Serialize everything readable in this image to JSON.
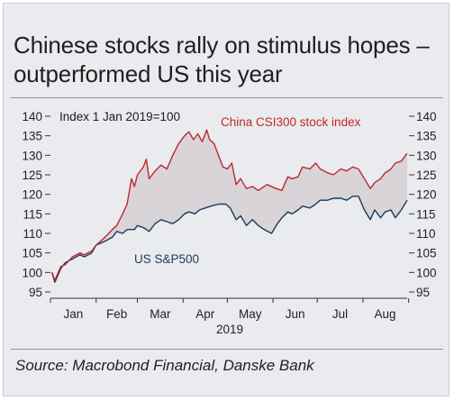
{
  "title": "Chinese stocks rally on stimulus hopes – outperformed US this year",
  "source": "Source: Macrobond Financial, Danske Bank",
  "colors": {
    "china": "#c0272d",
    "us": "#1c3a5e",
    "fill": "#d8d4d7",
    "background": "#e9ebee"
  },
  "chart_data": {
    "type": "line",
    "title": "",
    "subtitle": "Index 1 Jan 2019=100",
    "xlabel": "2019",
    "ylabel": "",
    "ylim": [
      95,
      140
    ],
    "yticks": [
      95,
      100,
      105,
      110,
      115,
      120,
      125,
      130,
      135,
      140
    ],
    "ytick_labels": [
      "95",
      "100",
      "105",
      "110",
      "115",
      "120",
      "125",
      "130",
      "135",
      "140"
    ],
    "xlim": [
      "2019-01-01",
      "2019-08-31"
    ],
    "xtick_labels": [
      "Jan",
      "Feb",
      "Mar",
      "Apr",
      "May",
      "Jun",
      "Jul",
      "Aug"
    ],
    "grid": false,
    "fill_between": true,
    "series": [
      {
        "name": "China CSI300 stock index",
        "color": "#c0272d",
        "points": [
          [
            "2019-01-02",
            100
          ],
          [
            "2019-01-04",
            98
          ],
          [
            "2019-01-08",
            101.5
          ],
          [
            "2019-01-11",
            102
          ],
          [
            "2019-01-16",
            104
          ],
          [
            "2019-01-21",
            105
          ],
          [
            "2019-01-24",
            104.5
          ],
          [
            "2019-01-29",
            105.5
          ],
          [
            "2019-02-01",
            107
          ],
          [
            "2019-02-07",
            109
          ],
          [
            "2019-02-12",
            111
          ],
          [
            "2019-02-15",
            112
          ],
          [
            "2019-02-19",
            115
          ],
          [
            "2019-02-22",
            117.5
          ],
          [
            "2019-02-25",
            124
          ],
          [
            "2019-02-27",
            122
          ],
          [
            "2019-03-01",
            125
          ],
          [
            "2019-03-05",
            127
          ],
          [
            "2019-03-07",
            129
          ],
          [
            "2019-03-09",
            124
          ],
          [
            "2019-03-13",
            126
          ],
          [
            "2019-03-17",
            127.5
          ],
          [
            "2019-03-21",
            126.5
          ],
          [
            "2019-03-25",
            130
          ],
          [
            "2019-03-29",
            133
          ],
          [
            "2019-04-02",
            135
          ],
          [
            "2019-04-05",
            136
          ],
          [
            "2019-04-08",
            134
          ],
          [
            "2019-04-11",
            135.5
          ],
          [
            "2019-04-14",
            133.5
          ],
          [
            "2019-04-17",
            136.5
          ],
          [
            "2019-04-19",
            134
          ],
          [
            "2019-04-22",
            133
          ],
          [
            "2019-04-25",
            130
          ],
          [
            "2019-04-28",
            127
          ],
          [
            "2019-05-01",
            126.5
          ],
          [
            "2019-05-04",
            128
          ],
          [
            "2019-05-07",
            122.5
          ],
          [
            "2019-05-10",
            124
          ],
          [
            "2019-05-14",
            121.5
          ],
          [
            "2019-05-18",
            122
          ],
          [
            "2019-05-22",
            121
          ],
          [
            "2019-05-28",
            122.5
          ],
          [
            "2019-06-03",
            121.5
          ],
          [
            "2019-06-07",
            121
          ],
          [
            "2019-06-11",
            124.5
          ],
          [
            "2019-06-14",
            124
          ],
          [
            "2019-06-18",
            124.5
          ],
          [
            "2019-06-21",
            127
          ],
          [
            "2019-06-26",
            126.5
          ],
          [
            "2019-06-30",
            128
          ],
          [
            "2019-07-03",
            126.5
          ],
          [
            "2019-07-08",
            125.5
          ],
          [
            "2019-07-12",
            125
          ],
          [
            "2019-07-17",
            126.5
          ],
          [
            "2019-07-21",
            126
          ],
          [
            "2019-07-25",
            127
          ],
          [
            "2019-07-29",
            126.5
          ],
          [
            "2019-08-02",
            124
          ],
          [
            "2019-08-06",
            121.5
          ],
          [
            "2019-08-09",
            123
          ],
          [
            "2019-08-13",
            124
          ],
          [
            "2019-08-16",
            125.5
          ],
          [
            "2019-08-20",
            126.5
          ],
          [
            "2019-08-23",
            128
          ],
          [
            "2019-08-27",
            128.5
          ],
          [
            "2019-08-31",
            130.5
          ]
        ]
      },
      {
        "name": "US S&P500",
        "color": "#1c3a5e",
        "points": [
          [
            "2019-01-02",
            100
          ],
          [
            "2019-01-04",
            97.5
          ],
          [
            "2019-01-08",
            101
          ],
          [
            "2019-01-11",
            102.5
          ],
          [
            "2019-01-16",
            103.5
          ],
          [
            "2019-01-21",
            104.5
          ],
          [
            "2019-01-24",
            104
          ],
          [
            "2019-01-29",
            105
          ],
          [
            "2019-02-01",
            107
          ],
          [
            "2019-02-07",
            108
          ],
          [
            "2019-02-12",
            109
          ],
          [
            "2019-02-15",
            110.5
          ],
          [
            "2019-02-19",
            110
          ],
          [
            "2019-02-22",
            111
          ],
          [
            "2019-02-27",
            111
          ],
          [
            "2019-03-01",
            112
          ],
          [
            "2019-03-05",
            111.5
          ],
          [
            "2019-03-09",
            110.5
          ],
          [
            "2019-03-13",
            112.5
          ],
          [
            "2019-03-17",
            113.5
          ],
          [
            "2019-03-21",
            113
          ],
          [
            "2019-03-25",
            112.5
          ],
          [
            "2019-03-29",
            113.5
          ],
          [
            "2019-04-02",
            115
          ],
          [
            "2019-04-05",
            115.5
          ],
          [
            "2019-04-09",
            115
          ],
          [
            "2019-04-12",
            116
          ],
          [
            "2019-04-16",
            116.5
          ],
          [
            "2019-04-20",
            117
          ],
          [
            "2019-04-25",
            117.5
          ],
          [
            "2019-04-30",
            117.5
          ],
          [
            "2019-05-03",
            116.5
          ],
          [
            "2019-05-07",
            113.5
          ],
          [
            "2019-05-10",
            114.5
          ],
          [
            "2019-05-14",
            112
          ],
          [
            "2019-05-18",
            113.5
          ],
          [
            "2019-05-22",
            112
          ],
          [
            "2019-05-26",
            111
          ],
          [
            "2019-05-31",
            110
          ],
          [
            "2019-06-04",
            112.5
          ],
          [
            "2019-06-07",
            114
          ],
          [
            "2019-06-11",
            115.5
          ],
          [
            "2019-06-14",
            115
          ],
          [
            "2019-06-18",
            116
          ],
          [
            "2019-06-21",
            117
          ],
          [
            "2019-06-26",
            116.5
          ],
          [
            "2019-06-30",
            117.5
          ],
          [
            "2019-07-03",
            118.5
          ],
          [
            "2019-07-08",
            118.5
          ],
          [
            "2019-07-12",
            119
          ],
          [
            "2019-07-17",
            119
          ],
          [
            "2019-07-21",
            118.5
          ],
          [
            "2019-07-25",
            119.5
          ],
          [
            "2019-07-29",
            119.5
          ],
          [
            "2019-08-02",
            116
          ],
          [
            "2019-08-06",
            113.5
          ],
          [
            "2019-08-09",
            116
          ],
          [
            "2019-08-13",
            114
          ],
          [
            "2019-08-16",
            115.5
          ],
          [
            "2019-08-20",
            116
          ],
          [
            "2019-08-23",
            114
          ],
          [
            "2019-08-27",
            116
          ],
          [
            "2019-08-31",
            118.5
          ]
        ]
      }
    ]
  }
}
